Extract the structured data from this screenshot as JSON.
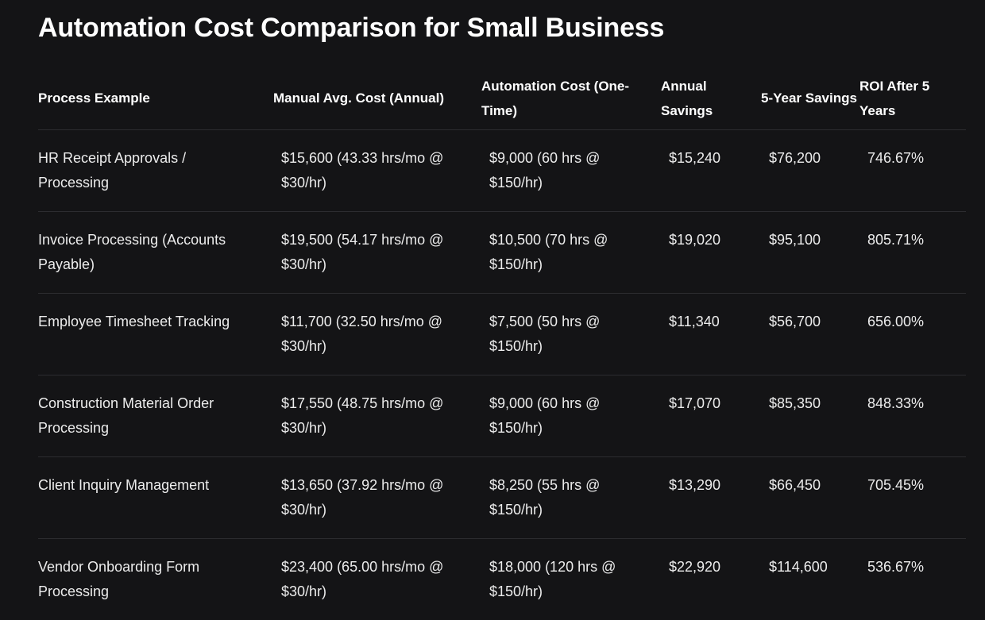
{
  "title": "Automation Cost Comparison for Small Business",
  "columns": [
    "Process Example",
    "Manual Avg. Cost (Annual)",
    "Automation Cost (One-Time)",
    "Annual Savings",
    "5-Year Savings",
    "ROI After 5 Years"
  ],
  "rows": [
    {
      "process": "HR Receipt Approvals / Processing",
      "manual_cost": "$15,600 (43.33 hrs/mo @ $30/hr)",
      "automation_cost": "$9,000 (60 hrs @ $150/hr)",
      "annual_savings": "$15,240",
      "five_year_savings": "$76,200",
      "roi": "746.67%"
    },
    {
      "process": "Invoice Processing (Accounts Payable)",
      "manual_cost": "$19,500 (54.17 hrs/mo @ $30/hr)",
      "automation_cost": "$10,500 (70 hrs @ $150/hr)",
      "annual_savings": "$19,020",
      "five_year_savings": "$95,100",
      "roi": "805.71%"
    },
    {
      "process": "Employee Timesheet Tracking",
      "manual_cost": "$11,700 (32.50 hrs/mo @ $30/hr)",
      "automation_cost": "$7,500 (50 hrs @ $150/hr)",
      "annual_savings": "$11,340",
      "five_year_savings": "$56,700",
      "roi": "656.00%"
    },
    {
      "process": "Construction Material Order Processing",
      "manual_cost": "$17,550 (48.75 hrs/mo @ $30/hr)",
      "automation_cost": "$9,000 (60 hrs @ $150/hr)",
      "annual_savings": "$17,070",
      "five_year_savings": "$85,350",
      "roi": "848.33%"
    },
    {
      "process": "Client Inquiry Management",
      "manual_cost": "$13,650 (37.92 hrs/mo @ $30/hr)",
      "automation_cost": "$8,250 (55 hrs @ $150/hr)",
      "annual_savings": "$13,290",
      "five_year_savings": "$66,450",
      "roi": "705.45%"
    },
    {
      "process": "Vendor Onboarding Form Processing",
      "manual_cost": "$23,400 (65.00 hrs/mo @ $30/hr)",
      "automation_cost": "$18,000 (120 hrs @ $150/hr)",
      "annual_savings": "$22,920",
      "five_year_savings": "$114,600",
      "roi": "536.67%"
    }
  ],
  "colors": {
    "background": "#141416",
    "text": "#ececec",
    "heading": "#ffffff",
    "divider": "#2c2c30"
  }
}
